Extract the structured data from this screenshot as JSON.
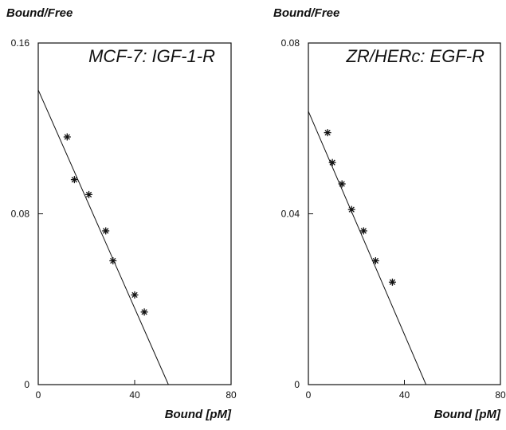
{
  "chart_data": [
    {
      "type": "scatter",
      "title": "MCF-7: IGF-1-R",
      "xlabel": "Bound [pM]",
      "ylabel": "Bound/Free",
      "xlim": [
        0,
        80
      ],
      "ylim": [
        0,
        0.16
      ],
      "xticks": [
        "0",
        "40",
        "80"
      ],
      "yticks": [
        "0",
        "0.08",
        "0.16"
      ],
      "points": [
        {
          "x": 12,
          "y": 0.116
        },
        {
          "x": 15,
          "y": 0.096
        },
        {
          "x": 21,
          "y": 0.089
        },
        {
          "x": 28,
          "y": 0.072
        },
        {
          "x": 31,
          "y": 0.058
        },
        {
          "x": 40,
          "y": 0.042
        },
        {
          "x": 44,
          "y": 0.034
        }
      ],
      "fit_line": [
        {
          "x": 0,
          "y": 0.138
        },
        {
          "x": 54,
          "y": 0
        }
      ],
      "grid": false
    },
    {
      "type": "scatter",
      "title": "ZR/HERc: EGF-R",
      "xlabel": "Bound [pM]",
      "ylabel": "Bound/Free",
      "xlim": [
        0,
        80
      ],
      "ylim": [
        0,
        0.08
      ],
      "xticks": [
        "0",
        "40",
        "80"
      ],
      "yticks": [
        "0",
        "0.04",
        "0.08"
      ],
      "points": [
        {
          "x": 8,
          "y": 0.059
        },
        {
          "x": 10,
          "y": 0.052
        },
        {
          "x": 14,
          "y": 0.047
        },
        {
          "x": 18,
          "y": 0.041
        },
        {
          "x": 23,
          "y": 0.036
        },
        {
          "x": 28,
          "y": 0.029
        },
        {
          "x": 35,
          "y": 0.024
        }
      ],
      "fit_line": [
        {
          "x": 0,
          "y": 0.064
        },
        {
          "x": 49,
          "y": 0
        }
      ],
      "grid": false
    }
  ]
}
